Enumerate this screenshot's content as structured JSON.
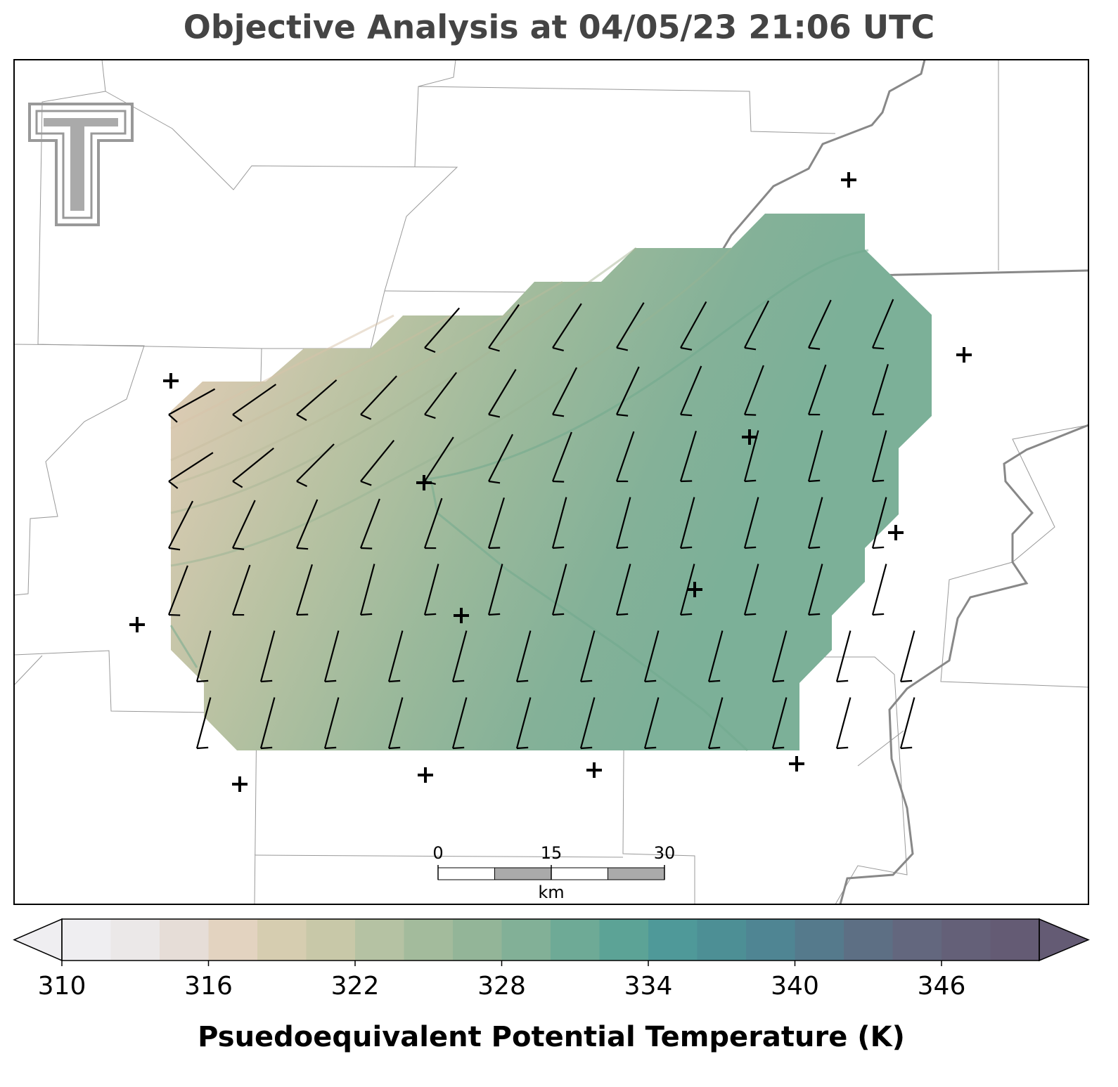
{
  "title": "Objective Analysis at 04/05/23 21:06 UTC",
  "colorbar": {
    "label": "Psuedoequivalent Potential Temperature (K)",
    "range": [
      310,
      350
    ],
    "ticks": [
      310,
      316,
      322,
      328,
      334,
      340,
      346
    ],
    "colors": [
      "#efeef1",
      "#ebe8e8",
      "#e6ddd7",
      "#e3d3c0",
      "#d6cdb0",
      "#c8c8a8",
      "#b5c2a3",
      "#a3bb9c",
      "#93b598",
      "#82b097",
      "#6eaa96",
      "#5ca396",
      "#4f9999",
      "#4d8f95",
      "#4f8593",
      "#557a8c",
      "#5d6f84",
      "#63677e",
      "#646078",
      "#645b74"
    ]
  },
  "scale_bar": {
    "ticks": [
      0,
      15,
      30
    ],
    "unit": "km"
  }
}
